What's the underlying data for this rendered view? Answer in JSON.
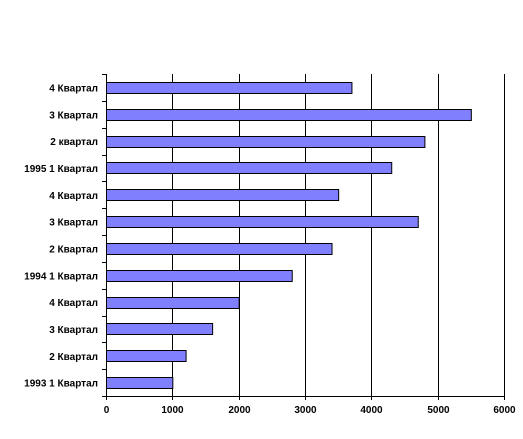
{
  "chart_data": {
    "type": "bar",
    "orientation": "horizontal",
    "categories": [
      "1993 1 Квартал",
      "2 Квартал",
      "3 Квартал",
      "4 Квартал",
      "1994 1 Квартал",
      "2 Квартал",
      "3 Квартал",
      "4 Квартал",
      "1995 1 Квартал",
      "2 квартал",
      "3 Квартал",
      "4 Квартал"
    ],
    "values": [
      1000,
      1200,
      1600,
      2000,
      2800,
      3400,
      4700,
      3500,
      4300,
      4800,
      5500,
      3700
    ],
    "xlim": [
      0,
      6000
    ],
    "xticks": [
      0,
      1000,
      2000,
      3000,
      4000,
      5000,
      6000
    ],
    "xtick_labels": [
      "0",
      "1000",
      "2000",
      "3000",
      "4000",
      "5000",
      "6000"
    ],
    "grid": "vertical major gridlines",
    "legend": "none",
    "title": "",
    "xlabel": "",
    "ylabel": "",
    "bar_color": "#8080ff",
    "bar_edge_color": "#000000"
  }
}
